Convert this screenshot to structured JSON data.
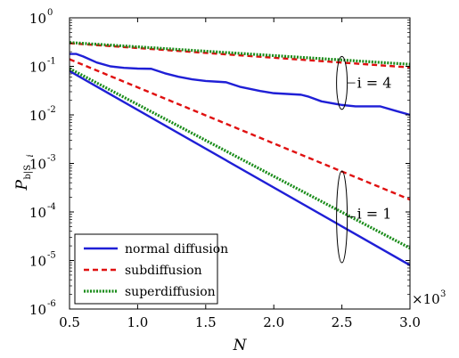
{
  "chart_data": {
    "type": "line",
    "xlabel": "N",
    "ylabel_main": "P",
    "ylabel_sub": "b|S",
    "ylabel_subsub": "i",
    "x_scale_label": "×10",
    "x_scale_exp": "3",
    "xlim": [
      0.5,
      3.0
    ],
    "ylim": [
      1e-06,
      1
    ],
    "yscale": "log",
    "xticks": [
      {
        "value": 0.5,
        "label": "0.5"
      },
      {
        "value": 1.0,
        "label": "1.0"
      },
      {
        "value": 1.5,
        "label": "1.5"
      },
      {
        "value": 2.0,
        "label": "2.0"
      },
      {
        "value": 2.5,
        "label": "2.5"
      },
      {
        "value": 3.0,
        "label": "3.0"
      }
    ],
    "yticks": [
      {
        "value": 1.0,
        "base": "10",
        "exp": "0"
      },
      {
        "value": 0.1,
        "base": "10",
        "exp": "-1"
      },
      {
        "value": 0.01,
        "base": "10",
        "exp": "-2"
      },
      {
        "value": 0.001,
        "base": "10",
        "exp": "-3"
      },
      {
        "value": 0.0001,
        "base": "10",
        "exp": "-4"
      },
      {
        "value": 1e-05,
        "base": "10",
        "exp": "-5"
      },
      {
        "value": 1e-06,
        "base": "10",
        "exp": "-6"
      }
    ],
    "series": [
      {
        "name": "normal diffusion",
        "color": "#1f1fd6",
        "dash": "none",
        "group": "i=4",
        "x": [
          0.5,
          0.55,
          0.6,
          0.7,
          0.8,
          0.9,
          1.0,
          1.1,
          1.2,
          1.3,
          1.4,
          1.5,
          1.6,
          1.65,
          1.75,
          1.9,
          2.0,
          2.1,
          2.2,
          2.25,
          2.35,
          2.5,
          2.6,
          2.7,
          2.78,
          2.9,
          3.0
        ],
        "y": [
          0.18,
          0.18,
          0.16,
          0.12,
          0.1,
          0.093,
          0.09,
          0.089,
          0.072,
          0.061,
          0.054,
          0.05,
          0.048,
          0.047,
          0.038,
          0.031,
          0.028,
          0.027,
          0.026,
          0.024,
          0.019,
          0.016,
          0.015,
          0.015,
          0.015,
          0.012,
          0.01
        ]
      },
      {
        "name": "subdiffusion",
        "color": "#e01010",
        "dash": "6,4",
        "group": "i=4",
        "x": [
          0.5,
          3.0
        ],
        "y": [
          0.3,
          0.095
        ]
      },
      {
        "name": "superdiffusion",
        "color": "#1a8c1a",
        "dash": "2,1.5",
        "group": "i=4",
        "x": [
          0.5,
          3.0
        ],
        "y": [
          0.31,
          0.11
        ]
      },
      {
        "name": "normal diffusion",
        "color": "#1f1fd6",
        "dash": "none",
        "group": "i=1",
        "x": [
          0.5,
          3.0
        ],
        "y": [
          0.08,
          8e-06
        ]
      },
      {
        "name": "subdiffusion",
        "color": "#e01010",
        "dash": "6,4",
        "group": "i=1",
        "x": [
          0.5,
          3.0
        ],
        "y": [
          0.14,
          0.00018
        ]
      },
      {
        "name": "superdiffusion",
        "color": "#1a8c1a",
        "dash": "2,1.5",
        "group": "i=1",
        "x": [
          0.5,
          3.0
        ],
        "y": [
          0.09,
          1.8e-05
        ]
      }
    ],
    "legend": {
      "placement": "bottom-left",
      "entries": [
        {
          "label": "normal diffusion",
          "color": "#1f1fd6",
          "dash": "none"
        },
        {
          "label": "subdiffusion",
          "color": "#e01010",
          "dash": "6,4"
        },
        {
          "label": "superdiffusion",
          "color": "#1a8c1a",
          "dash": "2,1.5"
        }
      ]
    },
    "annotations": [
      {
        "text": "i = 4",
        "x": 2.5,
        "y_center": 0.045,
        "y_top": 0.16,
        "y_bottom": 0.013
      },
      {
        "text": "i = 1",
        "x": 2.5,
        "y_center": 9e-05,
        "y_top": 0.0007,
        "y_bottom": 9e-06
      }
    ],
    "grid": false
  }
}
